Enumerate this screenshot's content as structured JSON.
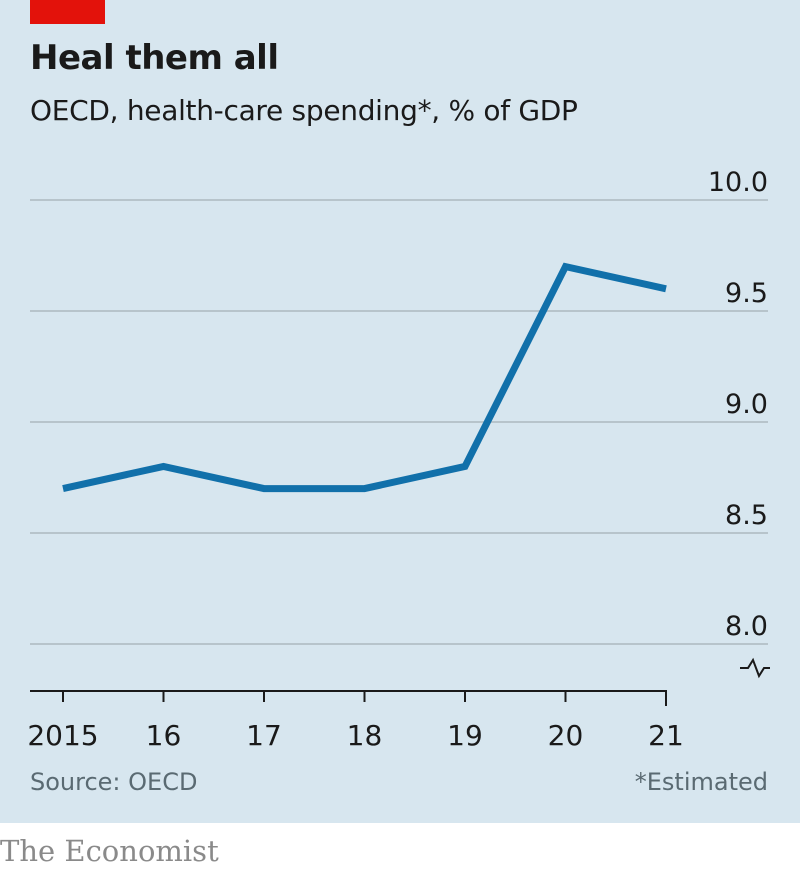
{
  "header": {
    "title": "Heal them all",
    "subtitle": "OECD, health-care spending*, % of GDP"
  },
  "footer": {
    "source": "Source: OECD",
    "footnote": "*Estimated",
    "brand": "The Economist"
  },
  "colors": {
    "line": "#1170aa",
    "accent": "#e3120b",
    "background": "#d7e6ef",
    "gridline": "#b7c4cb"
  },
  "chart_data": {
    "type": "line",
    "title": "Heal them all",
    "subtitle": "OECD, health-care spending*, % of GDP",
    "xlabel": "",
    "ylabel": "% of GDP",
    "x": [
      2015,
      2016,
      2017,
      2018,
      2019,
      2020,
      2021
    ],
    "x_tick_labels": [
      "2015",
      "16",
      "17",
      "18",
      "19",
      "20",
      "21"
    ],
    "series": [
      {
        "name": "Health-care spending, % of GDP",
        "values": [
          8.7,
          8.8,
          8.7,
          8.7,
          8.8,
          9.7,
          9.6
        ]
      }
    ],
    "ylim": [
      8.0,
      10.0
    ],
    "y_ticks": [
      8.0,
      8.5,
      9.0,
      9.5,
      10.0
    ],
    "y_tick_labels": [
      "8.0",
      "8.5",
      "9.0",
      "9.5",
      "10.0"
    ],
    "y_axis_position": "right",
    "y_axis_break": true,
    "grid": true,
    "annotations": [
      "*Estimated"
    ],
    "source": "Source: OECD"
  }
}
